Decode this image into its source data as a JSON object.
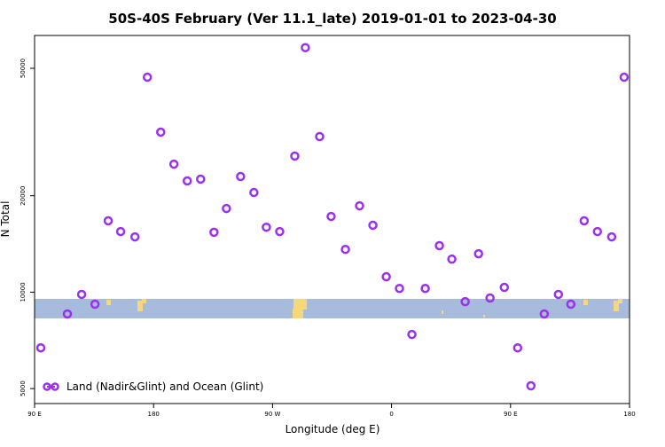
{
  "chart_data": {
    "type": "scatter",
    "title": "50S-40S February (Ver 11.1_late)   2019-01-01 to 2023-04-30",
    "x_label": "Longitude (deg E)",
    "y_label": "N Total",
    "log_y": true,
    "xlim": [
      90,
      540
    ],
    "xticks": [
      {
        "value": 90,
        "label": "90 E"
      },
      180,
      {
        "value": 270,
        "label": "90 W"
      },
      {
        "value": 360,
        "label": "0"
      },
      {
        "value": 450,
        "label": "90 E"
      },
      {
        "value": 540,
        "label": "180"
      }
    ],
    "ylim": [
      4490,
      63300
    ],
    "yticks": [
      5000,
      10000,
      20000,
      50000
    ],
    "legend_position": "lower left",
    "series": [
      {
        "name": "Land (Nadir&Glint) and Ocean (Glint)",
        "color": "#9b30f0",
        "x": [
          94.7,
          114.8,
          125.6,
          135.7,
          145.7,
          155.1,
          165.9,
          175.3,
          185.4,
          195.4,
          205.5,
          215.6,
          225.7,
          235.1,
          245.8,
          255.9,
          265.3,
          275.4,
          286.8,
          294.8,
          305.6,
          314.3,
          325.1,
          335.8,
          345.9,
          356.0,
          366.0,
          375.4,
          385.5,
          396.2,
          405.6,
          415.7,
          425.8,
          434.5,
          445.3,
          455.4,
          465.4,
          475.5,
          486.2,
          495.6,
          505.7,
          515.7,
          526.5,
          535.9
        ],
        "values": [
          6700,
          8550,
          9840,
          9170,
          16700,
          15460,
          14880,
          46900,
          31600,
          25100,
          22250,
          22540,
          15380,
          18250,
          22960,
          20470,
          15950,
          15460,
          26600,
          58000,
          30600,
          17230,
          13600,
          18600,
          16180,
          11170,
          10270,
          7380,
          10270,
          13970,
          12680,
          9340,
          13180,
          9590,
          10350,
          6700,
          5100,
          8550,
          9840,
          9170,
          16700,
          15460,
          14880,
          46900
        ]
      }
    ]
  }
}
